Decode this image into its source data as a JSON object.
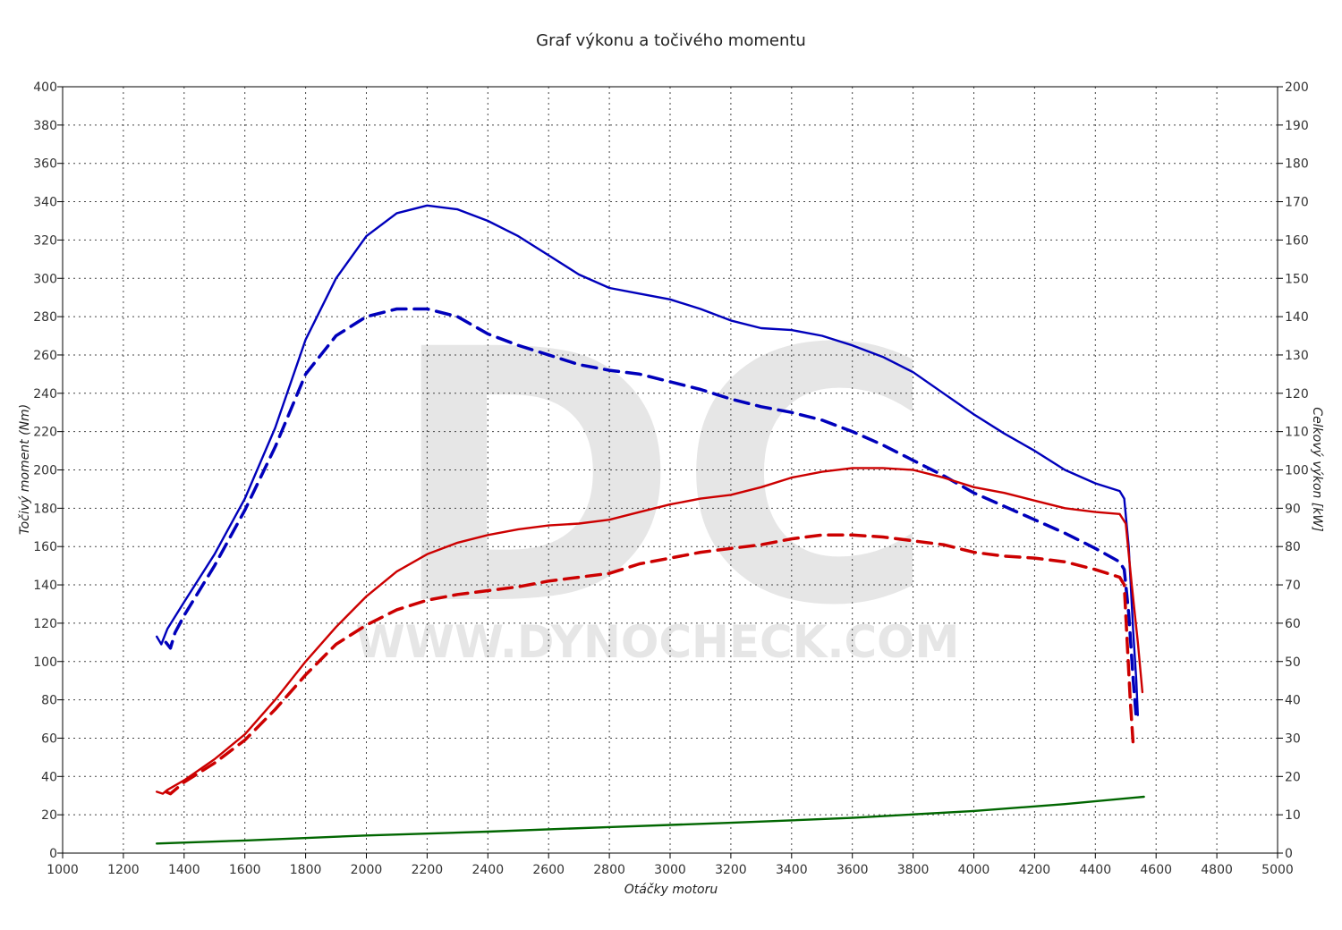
{
  "watermark": {
    "logo": "DC",
    "url": "WWW.DYNOCHECK.COM"
  },
  "chart_data": {
    "type": "line",
    "title": "Graf výkonu a točivého momentu",
    "xlabel": "Otáčky motoru",
    "ylabel_left": "Točivý moment (Nm)",
    "ylabel_right": "Celkový výkon [kW]",
    "xlim": [
      1000,
      5000
    ],
    "ylim_left": [
      0,
      400
    ],
    "ylim_right": [
      0,
      200
    ],
    "x_ticks": [
      "1000",
      "1200",
      "1400",
      "1600",
      "1800",
      "2000",
      "2200",
      "2400",
      "2600",
      "2800",
      "3000",
      "3200",
      "3400",
      "3600",
      "3800",
      "4000",
      "4200",
      "4400",
      "4600",
      "4800",
      "5000"
    ],
    "y_left_ticks": [
      "0",
      "20",
      "40",
      "60",
      "80",
      "100",
      "120",
      "140",
      "160",
      "180",
      "200",
      "220",
      "240",
      "260",
      "280",
      "300",
      "320",
      "340",
      "360",
      "380",
      "400"
    ],
    "y_right_ticks": [
      "0",
      "10",
      "20",
      "30",
      "40",
      "50",
      "60",
      "70",
      "80",
      "90",
      "100",
      "110",
      "120",
      "130",
      "140",
      "150",
      "160",
      "170",
      "180",
      "190",
      "200"
    ],
    "grid": true,
    "legend": "none",
    "series": [
      {
        "color": "#0000bb",
        "dash": false,
        "axis": "left",
        "points": [
          [
            1310,
            113
          ],
          [
            1325,
            109
          ],
          [
            1345,
            117
          ],
          [
            1400,
            131
          ],
          [
            1500,
            156
          ],
          [
            1600,
            185
          ],
          [
            1700,
            222
          ],
          [
            1800,
            268
          ],
          [
            1900,
            300
          ],
          [
            2000,
            322
          ],
          [
            2100,
            334
          ],
          [
            2200,
            338
          ],
          [
            2300,
            336
          ],
          [
            2400,
            330
          ],
          [
            2500,
            322
          ],
          [
            2600,
            312
          ],
          [
            2700,
            302
          ],
          [
            2800,
            295
          ],
          [
            2900,
            292
          ],
          [
            3000,
            289
          ],
          [
            3100,
            284
          ],
          [
            3200,
            278
          ],
          [
            3300,
            274
          ],
          [
            3400,
            273
          ],
          [
            3500,
            270
          ],
          [
            3600,
            265
          ],
          [
            3700,
            259
          ],
          [
            3800,
            251
          ],
          [
            3900,
            240
          ],
          [
            4000,
            229
          ],
          [
            4100,
            219
          ],
          [
            4200,
            210
          ],
          [
            4300,
            200
          ],
          [
            4400,
            193
          ],
          [
            4480,
            189
          ],
          [
            4495,
            185
          ],
          [
            4510,
            160
          ],
          [
            4525,
            115
          ],
          [
            4535,
            90
          ],
          [
            4540,
            72
          ]
        ]
      },
      {
        "color": "#0000bb",
        "dash": true,
        "axis": "left",
        "points": [
          [
            1340,
            110
          ],
          [
            1355,
            107
          ],
          [
            1370,
            115
          ],
          [
            1400,
            124
          ],
          [
            1500,
            150
          ],
          [
            1600,
            179
          ],
          [
            1700,
            212
          ],
          [
            1800,
            250
          ],
          [
            1900,
            270
          ],
          [
            2000,
            280
          ],
          [
            2100,
            284
          ],
          [
            2200,
            284
          ],
          [
            2300,
            280
          ],
          [
            2400,
            271
          ],
          [
            2500,
            265
          ],
          [
            2600,
            260
          ],
          [
            2700,
            255
          ],
          [
            2800,
            252
          ],
          [
            2900,
            250
          ],
          [
            3000,
            246
          ],
          [
            3100,
            242
          ],
          [
            3200,
            237
          ],
          [
            3300,
            233
          ],
          [
            3400,
            230
          ],
          [
            3500,
            226
          ],
          [
            3600,
            220
          ],
          [
            3700,
            213
          ],
          [
            3800,
            205
          ],
          [
            3900,
            197
          ],
          [
            4000,
            188
          ],
          [
            4100,
            181
          ],
          [
            4200,
            174
          ],
          [
            4300,
            167
          ],
          [
            4400,
            159
          ],
          [
            4480,
            152
          ],
          [
            4495,
            148
          ],
          [
            4510,
            125
          ],
          [
            4525,
            90
          ],
          [
            4535,
            70
          ]
        ]
      },
      {
        "color": "#cc0000",
        "dash": false,
        "axis": "right",
        "points": [
          [
            1310,
            16
          ],
          [
            1330,
            15.5
          ],
          [
            1345,
            16.5
          ],
          [
            1400,
            19
          ],
          [
            1500,
            24.5
          ],
          [
            1600,
            31
          ],
          [
            1700,
            40
          ],
          [
            1800,
            50
          ],
          [
            1900,
            59
          ],
          [
            2000,
            67
          ],
          [
            2100,
            73.5
          ],
          [
            2200,
            78
          ],
          [
            2300,
            81
          ],
          [
            2400,
            83
          ],
          [
            2500,
            84.5
          ],
          [
            2600,
            85.5
          ],
          [
            2700,
            86
          ],
          [
            2800,
            87
          ],
          [
            2900,
            89
          ],
          [
            3000,
            91
          ],
          [
            3100,
            92.5
          ],
          [
            3200,
            93.5
          ],
          [
            3300,
            95.5
          ],
          [
            3400,
            98
          ],
          [
            3500,
            99.5
          ],
          [
            3600,
            100.5
          ],
          [
            3700,
            100.5
          ],
          [
            3800,
            100
          ],
          [
            3900,
            98
          ],
          [
            4000,
            95.5
          ],
          [
            4100,
            94
          ],
          [
            4200,
            92
          ],
          [
            4300,
            90
          ],
          [
            4400,
            89
          ],
          [
            4480,
            88.5
          ],
          [
            4500,
            86
          ],
          [
            4520,
            70
          ],
          [
            4540,
            55
          ],
          [
            4555,
            42
          ]
        ]
      },
      {
        "color": "#cc0000",
        "dash": true,
        "axis": "right",
        "points": [
          [
            1340,
            16
          ],
          [
            1355,
            15.5
          ],
          [
            1370,
            16.5
          ],
          [
            1400,
            18.5
          ],
          [
            1500,
            23.5
          ],
          [
            1600,
            29.5
          ],
          [
            1700,
            37.5
          ],
          [
            1800,
            46.5
          ],
          [
            1900,
            54.5
          ],
          [
            2000,
            59.5
          ],
          [
            2100,
            63.5
          ],
          [
            2200,
            66
          ],
          [
            2300,
            67.5
          ],
          [
            2400,
            68.5
          ],
          [
            2500,
            69.5
          ],
          [
            2600,
            71
          ],
          [
            2700,
            72
          ],
          [
            2800,
            73
          ],
          [
            2900,
            75.5
          ],
          [
            3000,
            77
          ],
          [
            3100,
            78.5
          ],
          [
            3200,
            79.5
          ],
          [
            3300,
            80.5
          ],
          [
            3400,
            82
          ],
          [
            3500,
            83
          ],
          [
            3600,
            83
          ],
          [
            3700,
            82.5
          ],
          [
            3800,
            81.5
          ],
          [
            3900,
            80.5
          ],
          [
            4000,
            78.5
          ],
          [
            4100,
            77.5
          ],
          [
            4200,
            77
          ],
          [
            4300,
            76
          ],
          [
            4400,
            74
          ],
          [
            4480,
            72
          ],
          [
            4495,
            70
          ],
          [
            4505,
            55
          ],
          [
            4515,
            40
          ],
          [
            4525,
            28
          ]
        ]
      },
      {
        "color": "#006600",
        "dash": false,
        "axis": "right",
        "points": [
          [
            1310,
            2.5
          ],
          [
            1600,
            3.3
          ],
          [
            2000,
            4.6
          ],
          [
            2400,
            5.6
          ],
          [
            2800,
            6.8
          ],
          [
            3200,
            7.9
          ],
          [
            3600,
            9.2
          ],
          [
            4000,
            11
          ],
          [
            4300,
            12.8
          ],
          [
            4560,
            14.7
          ]
        ]
      }
    ]
  }
}
